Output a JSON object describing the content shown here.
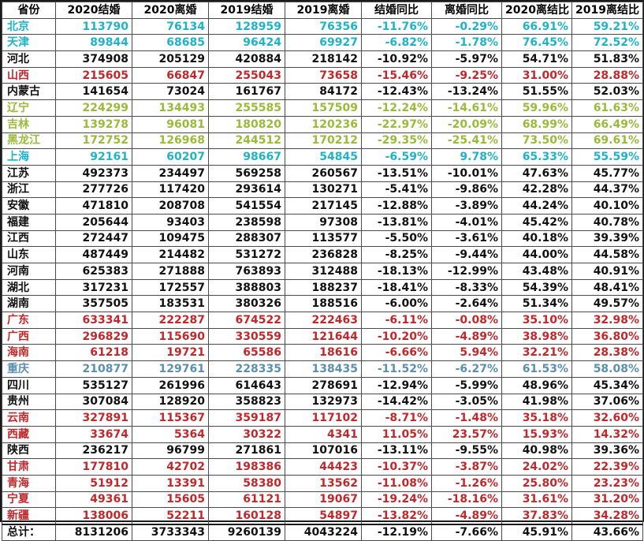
{
  "headers": [
    "省份",
    "2020结婚",
    "2020离婚",
    "2019结婚",
    "2019离婚",
    "结婚同比",
    "离婚同比",
    "2020离结比",
    "2019离结比"
  ],
  "colors": {
    "black": "#111111",
    "cyan": "#1fb3c9",
    "red": "#c0282b",
    "green": "#9aba3b",
    "steel": "#5a8fb0"
  },
  "rows": [
    {
      "cells": [
        "北京",
        "113790",
        "76134",
        "128959",
        "76356",
        "-11.76%",
        "-0.29%",
        "66.91%",
        "59.21%"
      ],
      "color": "cyan"
    },
    {
      "cells": [
        "天津",
        "89844",
        "68685",
        "96424",
        "69927",
        "-6.82%",
        "-1.78%",
        "76.45%",
        "72.52%"
      ],
      "color": "cyan"
    },
    {
      "cells": [
        "河北",
        "374908",
        "205129",
        "420884",
        "218142",
        "-10.92%",
        "-5.97%",
        "54.71%",
        "51.83%"
      ],
      "color": "black"
    },
    {
      "cells": [
        "山西",
        "215605",
        "66847",
        "255043",
        "73658",
        "-15.46%",
        "-9.25%",
        "31.00%",
        "28.88%"
      ],
      "color": "red"
    },
    {
      "cells": [
        "内蒙古",
        "141654",
        "73024",
        "161767",
        "84172",
        "-12.43%",
        "-13.24%",
        "51.55%",
        "52.03%"
      ],
      "color": "black"
    },
    {
      "cells": [
        "辽宁",
        "224299",
        "134493",
        "255585",
        "157509",
        "-12.24%",
        "-14.61%",
        "59.96%",
        "61.63%"
      ],
      "color": "green"
    },
    {
      "cells": [
        "吉林",
        "139278",
        "96081",
        "180820",
        "120236",
        "-22.97%",
        "-20.09%",
        "68.99%",
        "66.49%"
      ],
      "color": "green"
    },
    {
      "cells": [
        "黑龙江",
        "172752",
        "126968",
        "244512",
        "170212",
        "-29.35%",
        "-25.41%",
        "73.50%",
        "69.61%"
      ],
      "color": "green"
    },
    {
      "cells": [
        "上海",
        "92161",
        "60207",
        "98667",
        "54845",
        "-6.59%",
        "9.78%",
        "65.33%",
        "55.59%"
      ],
      "color": "cyan"
    },
    {
      "cells": [
        "江苏",
        "492373",
        "234497",
        "569258",
        "260567",
        "-13.51%",
        "-10.01%",
        "47.63%",
        "45.77%"
      ],
      "color": "black"
    },
    {
      "cells": [
        "浙江",
        "277726",
        "117420",
        "293614",
        "130271",
        "-5.41%",
        "-9.86%",
        "42.28%",
        "44.37%"
      ],
      "color": "black"
    },
    {
      "cells": [
        "安徽",
        "471810",
        "208708",
        "541554",
        "217145",
        "-12.88%",
        "-3.89%",
        "44.24%",
        "40.10%"
      ],
      "color": "black"
    },
    {
      "cells": [
        "福建",
        "205644",
        "93403",
        "238598",
        "97308",
        "-13.81%",
        "-4.01%",
        "45.42%",
        "40.78%"
      ],
      "color": "black"
    },
    {
      "cells": [
        "江西",
        "272447",
        "109475",
        "288307",
        "113577",
        "-5.50%",
        "-3.61%",
        "40.18%",
        "39.39%"
      ],
      "color": "black"
    },
    {
      "cells": [
        "山东",
        "487449",
        "214482",
        "531272",
        "236828",
        "-8.25%",
        "-9.44%",
        "44.00%",
        "44.58%"
      ],
      "color": "black"
    },
    {
      "cells": [
        "河南",
        "625383",
        "271888",
        "763893",
        "312488",
        "-18.13%",
        "-12.99%",
        "43.48%",
        "40.91%"
      ],
      "color": "black"
    },
    {
      "cells": [
        "湖北",
        "317231",
        "172557",
        "388803",
        "188237",
        "-18.41%",
        "-8.33%",
        "54.39%",
        "48.41%"
      ],
      "color": "black"
    },
    {
      "cells": [
        "湖南",
        "357505",
        "183531",
        "380326",
        "188516",
        "-6.00%",
        "-2.64%",
        "51.34%",
        "49.57%"
      ],
      "color": "black"
    },
    {
      "cells": [
        "广东",
        "633341",
        "222287",
        "674522",
        "222463",
        "-6.11%",
        "-0.08%",
        "35.10%",
        "32.98%"
      ],
      "color": "red"
    },
    {
      "cells": [
        "广西",
        "296829",
        "115690",
        "330559",
        "121644",
        "-10.20%",
        "-4.89%",
        "38.98%",
        "36.80%"
      ],
      "color": "red"
    },
    {
      "cells": [
        "海南",
        "61218",
        "19721",
        "65586",
        "18616",
        "-6.66%",
        "5.94%",
        "32.21%",
        "28.38%"
      ],
      "color": "red"
    },
    {
      "cells": [
        "重庆",
        "210877",
        "129761",
        "228335",
        "138435",
        "-11.52%",
        "-6.27%",
        "61.53%",
        "58.08%"
      ],
      "color": "steel"
    },
    {
      "cells": [
        "四川",
        "535127",
        "261996",
        "614643",
        "278691",
        "-12.94%",
        "-5.99%",
        "48.96%",
        "45.34%"
      ],
      "color": "black"
    },
    {
      "cells": [
        "贵州",
        "307084",
        "128920",
        "358823",
        "132973",
        "-14.42%",
        "-3.05%",
        "41.98%",
        "37.06%"
      ],
      "color": "black"
    },
    {
      "cells": [
        "云南",
        "327891",
        "115367",
        "359187",
        "117102",
        "-8.71%",
        "-1.48%",
        "35.18%",
        "32.60%"
      ],
      "color": "red"
    },
    {
      "cells": [
        "西藏",
        "33674",
        "5364",
        "30322",
        "4341",
        "11.05%",
        "23.57%",
        "15.93%",
        "14.32%"
      ],
      "color": "red"
    },
    {
      "cells": [
        "陕西",
        "236217",
        "96799",
        "271861",
        "107016",
        "-13.11%",
        "-9.55%",
        "40.98%",
        "39.36%"
      ],
      "color": "black"
    },
    {
      "cells": [
        "甘肃",
        "177810",
        "42702",
        "198386",
        "44423",
        "-10.37%",
        "-3.87%",
        "24.02%",
        "22.39%"
      ],
      "color": "red"
    },
    {
      "cells": [
        "青海",
        "51912",
        "13391",
        "58380",
        "13562",
        "-11.08%",
        "-1.26%",
        "25.80%",
        "23.23%"
      ],
      "color": "red"
    },
    {
      "cells": [
        "宁夏",
        "49361",
        "15605",
        "61121",
        "19067",
        "-19.24%",
        "-18.16%",
        "31.61%",
        "31.20%"
      ],
      "color": "red"
    },
    {
      "cells": [
        "新疆",
        "138006",
        "52211",
        "160128",
        "54897",
        "-13.82%",
        "-4.89%",
        "37.83%",
        "34.28%"
      ],
      "color": "red"
    }
  ],
  "total": {
    "cells": [
      "总计：",
      "8131206",
      "3733343",
      "9260139",
      "4043224",
      "-12.19%",
      "-7.66%",
      "45.91%",
      "43.66%"
    ],
    "color": "black"
  }
}
